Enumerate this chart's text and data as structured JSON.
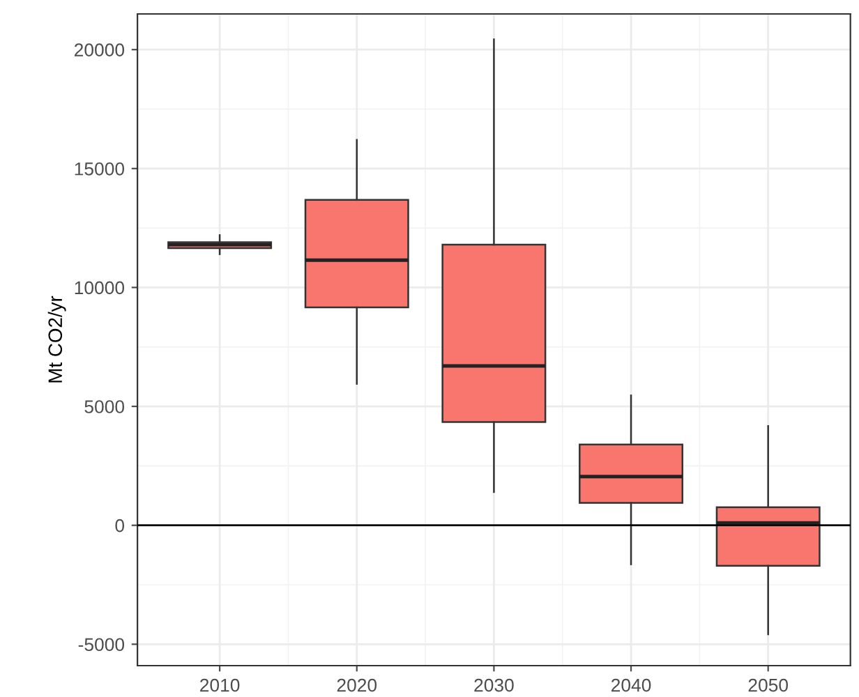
{
  "chart_data": {
    "type": "box",
    "ylabel": "Mt CO2/yr",
    "categories": [
      "2010",
      "2020",
      "2030",
      "2040",
      "2050"
    ],
    "color": "#f8766d",
    "boxes": [
      {
        "low": 11400,
        "q1": 11650,
        "median": 11800,
        "q3": 11900,
        "high": 12200
      },
      {
        "low": 5950,
        "q1": 9160,
        "median": 11150,
        "q3": 13680,
        "high": 16200
      },
      {
        "low": 1400,
        "q1": 4340,
        "median": 6700,
        "q3": 11800,
        "high": 20430
      },
      {
        "low": -1640,
        "q1": 940,
        "median": 2050,
        "q3": 3400,
        "high": 5460
      },
      {
        "low": -4580,
        "q1": -1700,
        "median": 100,
        "q3": 760,
        "high": 4170
      }
    ],
    "ylim": [
      -5900,
      21500
    ],
    "yticks": [
      -5000,
      0,
      5000,
      10000,
      15000,
      20000
    ],
    "grid": true,
    "ref_lines": [
      {
        "axis": "y",
        "value": 0,
        "color": "#000000"
      }
    ]
  }
}
